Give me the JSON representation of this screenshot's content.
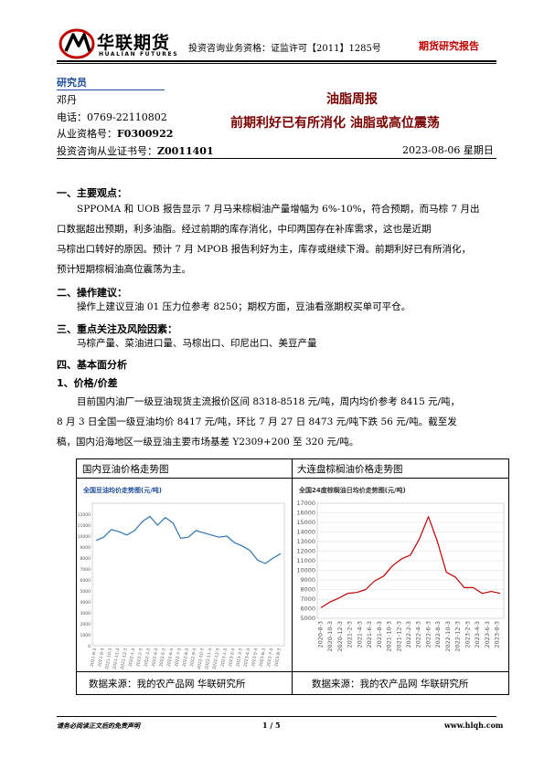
{
  "header": {
    "logo_cn": "华联期货",
    "logo_en": "HUALIAN FUTURES",
    "license": "投资咨询业务资格：证监许可【2011】1285号",
    "report_type": "期货研究报告"
  },
  "analyst": {
    "section_label": "研究员",
    "name": "邓丹",
    "phone": "电话：0769-22110802",
    "cert_label": "从业资格号：",
    "cert_value": "F0300922",
    "invest_label": "投资咨询从业证书号：",
    "invest_value": "Z0011401"
  },
  "report": {
    "weekly_title": "油脂周报",
    "headline": "前期利好已有所消化  油脂或高位震荡",
    "date": "2023-08-06 星期日"
  },
  "sections": {
    "s1_title": "一、主要观点：",
    "s1_lines": [
      "SPPOMA 和 UOB 报告显示 7 月马来棕榈油产量增幅为 6%-10%，符合预期，而马棕 7 月出",
      "口数据超出预期，利多油脂。经过前期的库存消化，中印两国存在补库需求，这也是近期",
      "马棕出口转好的原因。预计 7 月 MPOB 报告利好为主，库存或继续下滑。前期利好已有所消化，",
      "预计短期棕榈油高位震荡为主。"
    ],
    "s2_title": "二、操作建议：",
    "s2_text": "操作上建议豆油 01 压力位参考 8250；期权方面，豆油看涨期权买单可平仓。",
    "s3_title": "三、重点关注及风险因素：",
    "s3_text": "马棕产量、菜油进口量、马棕出口、印尼出口、美豆产量",
    "s4_title": "四、基本面分析",
    "s5_title": "1、价格/价差",
    "s5_lines": [
      "目前国内油厂一级豆油现货主流报价区间 8318-8518 元/吨，周内均价参考 8415 元/吨，",
      "8 月 3 日全国一级豆油均价 8417 元/吨，环比 7 月 27 日 8473 元/吨下跌 56 元/吨。截至发",
      "稿，国内沿海地区一级豆油主要市场基差 Y2309+200 至 320 元/吨。"
    ]
  },
  "charts": {
    "left_title": "国内豆油价格走势图",
    "right_title": "大连盘棕榈油价格走势图",
    "source_left": "数据来源：我的农产品网  华联研究所",
    "source_right": "数据来源：我的农产品网  华联研究所"
  },
  "chart_data": [
    {
      "type": "line",
      "title": "全国豆油均价走势图(元/吨)",
      "ylim": [
        0,
        13000
      ],
      "yticks": [
        "0",
        "1000",
        "2000",
        "3000",
        "4000",
        "5000",
        "6000",
        "7000",
        "8000",
        "9000",
        "10000",
        "11000",
        "12000"
      ],
      "xticks": [
        "2021-8-3",
        "2021-9-3",
        "2021-10-3",
        "2021-11-3",
        "2021-12-3",
        "2022-1-3",
        "2022-2-3",
        "2022-3-3",
        "2022-4-3",
        "2022-5-3",
        "2022-6-3",
        "2022-7-3",
        "2022-8-3",
        "2022-9-3",
        "2022-10-3",
        "2022-11-3",
        "2022-12-3",
        "2023-1-3",
        "2023-2-3",
        "2023-3-3",
        "2023-4-3",
        "2023-5-3",
        "2023-6-3",
        "2023-7-3",
        "2023-8-3"
      ],
      "series": [
        {
          "color": "#2f75b5",
          "values": [
            9600,
            9900,
            10600,
            10400,
            10100,
            10500,
            11300,
            11800,
            11000,
            11700,
            11200,
            9800,
            9900,
            10500,
            10300,
            10100,
            9900,
            10000,
            9400,
            9100,
            8700,
            7800,
            7500,
            8000,
            8400
          ]
        }
      ]
    },
    {
      "type": "line",
      "title": "全国24度棕榈油日均价走势图(元/吨)",
      "ylim": [
        5000,
        17000
      ],
      "yticks": [
        "5000",
        "6000",
        "7000",
        "8000",
        "9000",
        "10000",
        "11000",
        "12000",
        "13000",
        "14000",
        "15000",
        "16000",
        "17000"
      ],
      "xticks": [
        "2020-8-3",
        "2020-10-3",
        "2020-12-3",
        "2021-2-3",
        "2021-4-3",
        "2021-6-3",
        "2021-8-3",
        "2021-10-3",
        "2021-12-3",
        "2022-2-3",
        "2022-4-3",
        "2022-6-3",
        "2022-8-3",
        "2022-10-3",
        "2022-12-3",
        "2023-2-3",
        "2023-4-3",
        "2023-6-3",
        "2023-8-3"
      ],
      "series": [
        {
          "color": "#c00000",
          "values": [
            6100,
            6700,
            7100,
            7600,
            7700,
            8000,
            8900,
            9400,
            10500,
            11200,
            11600,
            13300,
            15600,
            13000,
            9800,
            9300,
            8200,
            8200,
            7600,
            7800,
            7600
          ]
        }
      ]
    }
  ],
  "footer": {
    "disclaimer": "请务必阅读正文后的免责声明",
    "page": "1 / 5",
    "url": "www.hlqh.com"
  }
}
